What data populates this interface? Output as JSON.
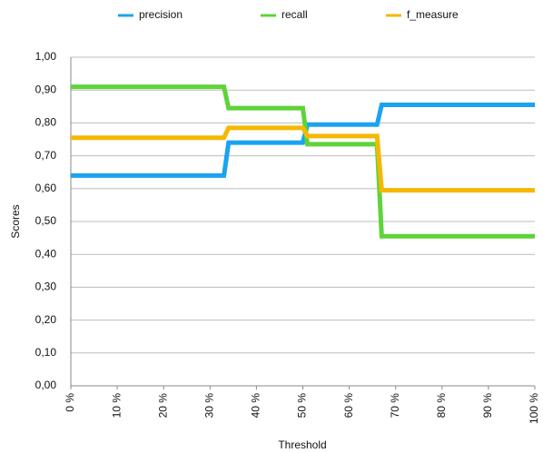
{
  "chart_data": {
    "type": "line",
    "x_label": "Threshold",
    "y_label": "Scores",
    "x": [
      0,
      33,
      34,
      50,
      51,
      66,
      67,
      100
    ],
    "series": [
      {
        "name": "precision",
        "color": "#1aa3f0",
        "values": [
          0.64,
          0.64,
          0.74,
          0.74,
          0.795,
          0.795,
          0.855,
          0.855
        ]
      },
      {
        "name": "recall",
        "color": "#5ed33a",
        "values": [
          0.91,
          0.91,
          0.845,
          0.845,
          0.735,
          0.735,
          0.455,
          0.455
        ]
      },
      {
        "name": "f_measure",
        "color": "#f5b800",
        "values": [
          0.755,
          0.755,
          0.785,
          0.785,
          0.76,
          0.76,
          0.595,
          0.595
        ]
      }
    ],
    "xlim": [
      0,
      100
    ],
    "xticks": [
      {
        "value": 0,
        "label": "0 %"
      },
      {
        "value": 10,
        "label": "10 %"
      },
      {
        "value": 20,
        "label": "20 %"
      },
      {
        "value": 30,
        "label": "30 %"
      },
      {
        "value": 40,
        "label": "40 %"
      },
      {
        "value": 50,
        "label": "50 %"
      },
      {
        "value": 60,
        "label": "60 %"
      },
      {
        "value": 70,
        "label": "70 %"
      },
      {
        "value": 80,
        "label": "80 %"
      },
      {
        "value": 90,
        "label": "90 %"
      },
      {
        "value": 100,
        "label": "100 %"
      }
    ],
    "ylim": [
      0,
      1
    ],
    "yticks": [
      {
        "value": 0,
        "label": "0,00"
      },
      {
        "value": 0.1,
        "label": "0,10"
      },
      {
        "value": 0.2,
        "label": "0,20"
      },
      {
        "value": 0.3,
        "label": "0,30"
      },
      {
        "value": 0.4,
        "label": "0,40"
      },
      {
        "value": 0.5,
        "label": "0,50"
      },
      {
        "value": 0.6,
        "label": "0,60"
      },
      {
        "value": 0.7,
        "label": "0,70"
      },
      {
        "value": 0.8,
        "label": "0,80"
      },
      {
        "value": 0.9,
        "label": "0,90"
      },
      {
        "value": 1,
        "label": "1,00"
      }
    ],
    "grid": true,
    "legend": "top"
  }
}
